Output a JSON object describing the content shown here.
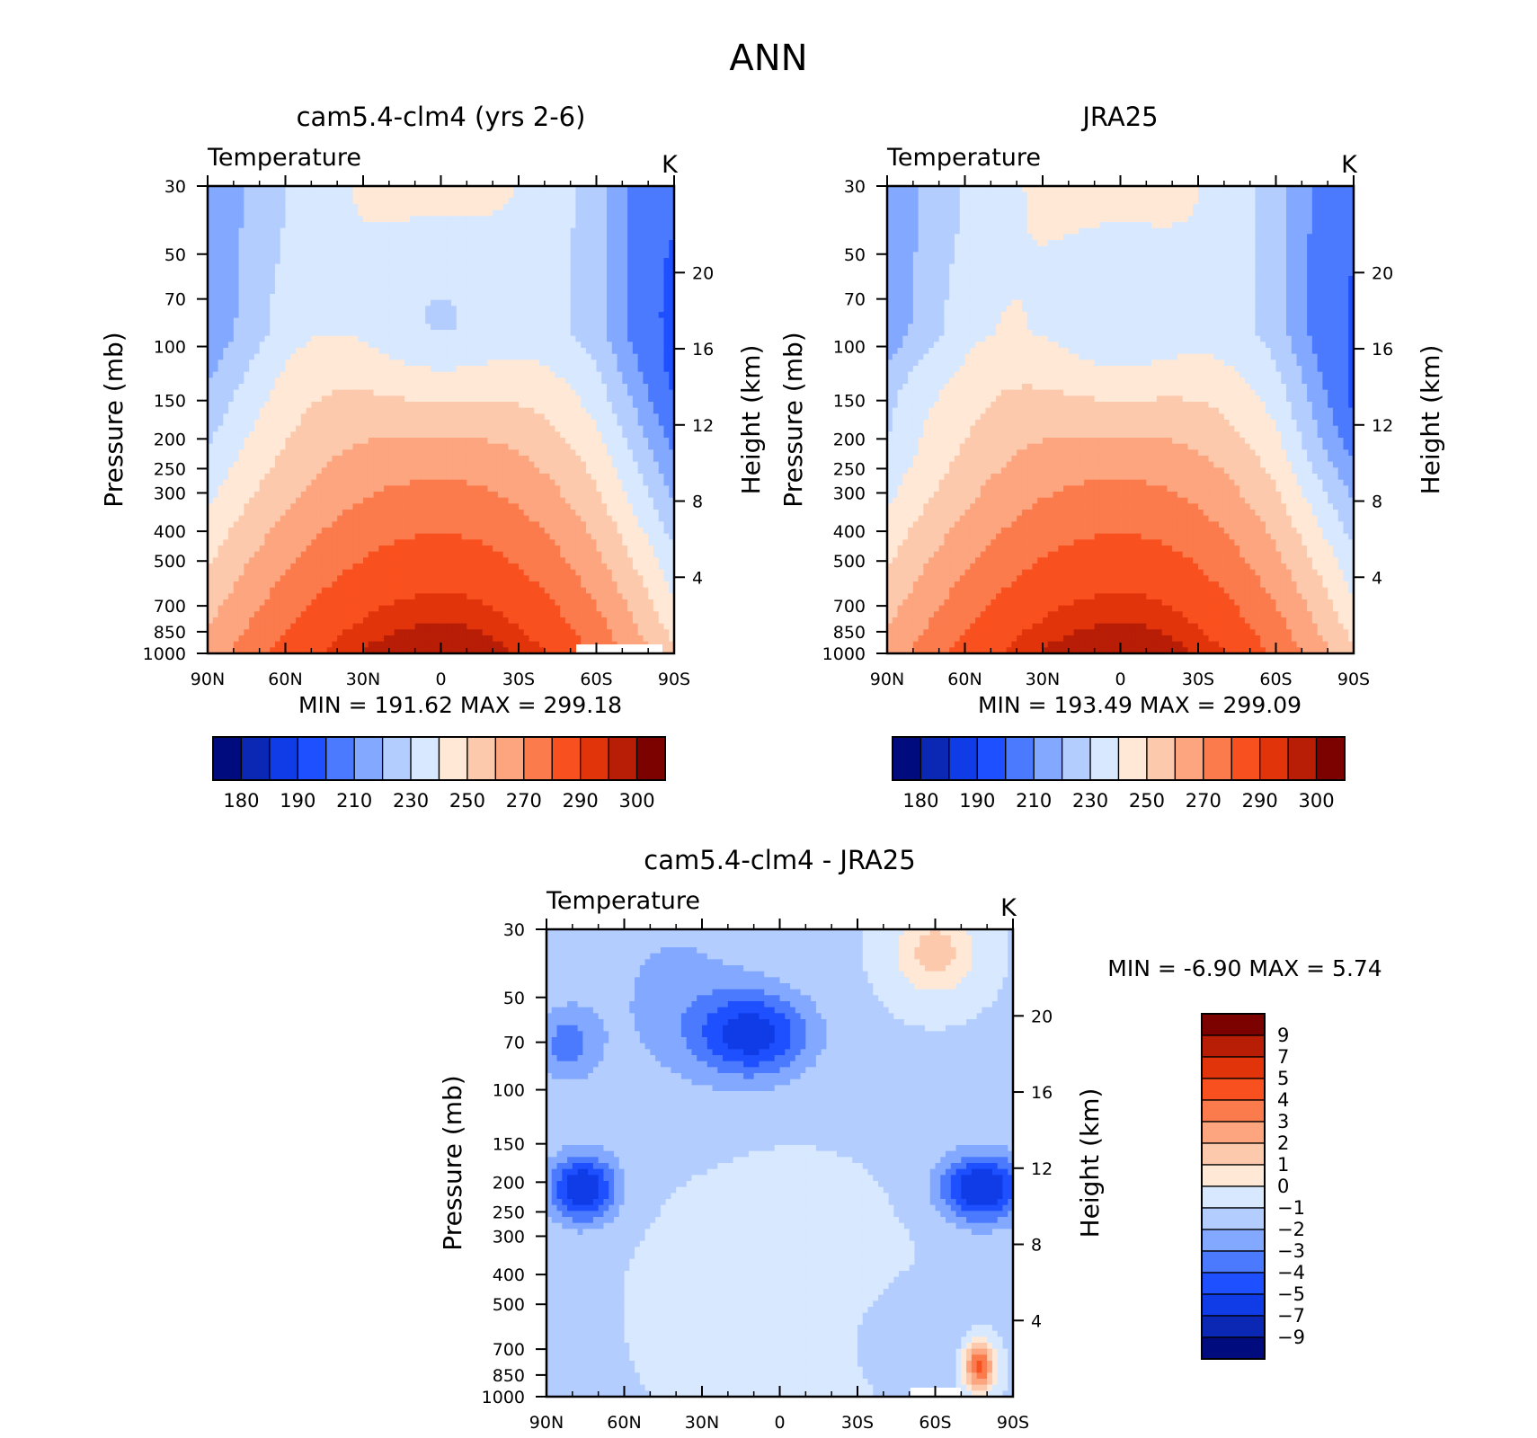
{
  "page_title": "ANN",
  "panels": [
    {
      "title": "cam5.4-clm4 (yrs 2-6)",
      "left_string": "Temperature",
      "right_string": "K",
      "min_max": "MIN =  191.62   MAX =  299.18"
    },
    {
      "title": "JRA25",
      "left_string": "Temperature",
      "right_string": "K",
      "min_max": "MIN =  193.49   MAX =  299.09"
    },
    {
      "title": "cam5.4-clm4 - JRA25",
      "left_string": "Temperature",
      "right_string": "K",
      "min_max": "MIN =   -6.90   MAX =    5.74"
    }
  ],
  "chart_data": [
    {
      "type": "heatmap",
      "title": "cam5.4-clm4 (yrs 2-6)",
      "xlabel": "",
      "ylabel": "Pressure (mb)",
      "ylabel_right": "Height (km)",
      "x_ticks": [
        "90N",
        "60N",
        "30N",
        "0",
        "30S",
        "60S",
        "90S"
      ],
      "y_ticks": [
        30,
        50,
        70,
        100,
        150,
        200,
        250,
        300,
        400,
        500,
        700,
        850,
        1000
      ],
      "y_right_ticks": [
        20,
        16,
        12,
        8,
        4
      ],
      "y_scale": "log",
      "ylim": [
        1000,
        30
      ],
      "contour_levels": [
        180,
        185,
        190,
        200,
        210,
        220,
        230,
        240,
        250,
        260,
        270,
        280,
        290,
        295,
        300
      ],
      "colorbar_labels": [
        "180",
        "190",
        "210",
        "230",
        "250",
        "270",
        "290",
        "300"
      ],
      "min": 191.62,
      "max": 299.18
    },
    {
      "type": "heatmap",
      "title": "JRA25",
      "xlabel": "",
      "ylabel": "Pressure (mb)",
      "ylabel_right": "Height (km)",
      "x_ticks": [
        "90N",
        "60N",
        "30N",
        "0",
        "30S",
        "60S",
        "90S"
      ],
      "y_ticks": [
        30,
        50,
        70,
        100,
        150,
        200,
        250,
        300,
        400,
        500,
        700,
        850,
        1000
      ],
      "y_right_ticks": [
        20,
        16,
        12,
        8,
        4
      ],
      "y_scale": "log",
      "ylim": [
        1000,
        30
      ],
      "contour_levels": [
        180,
        185,
        190,
        200,
        210,
        220,
        230,
        240,
        250,
        260,
        270,
        280,
        290,
        295,
        300
      ],
      "colorbar_labels": [
        "180",
        "190",
        "210",
        "230",
        "250",
        "270",
        "290",
        "300"
      ],
      "min": 193.49,
      "max": 299.09
    },
    {
      "type": "heatmap",
      "title": "cam5.4-clm4 - JRA25",
      "xlabel": "",
      "ylabel": "Pressure (mb)",
      "ylabel_right": "Height (km)",
      "x_ticks": [
        "90N",
        "60N",
        "30N",
        "0",
        "30S",
        "60S",
        "90S"
      ],
      "y_ticks": [
        30,
        50,
        70,
        100,
        150,
        200,
        250,
        300,
        400,
        500,
        700,
        850,
        1000
      ],
      "y_right_ticks": [
        20,
        16,
        12,
        8,
        4
      ],
      "y_scale": "log",
      "ylim": [
        1000,
        30
      ],
      "contour_levels": [
        -9,
        -7,
        -5,
        -4,
        -3,
        -2,
        -1,
        0,
        1,
        2,
        3,
        4,
        5,
        7,
        9
      ],
      "colorbar_labels": [
        "9",
        "7",
        "5",
        "4",
        "3",
        "2",
        "1",
        "0",
        "-1",
        "-2",
        "-3",
        "-4",
        "-5",
        "-7",
        "-9"
      ],
      "min": -6.9,
      "max": 5.74
    }
  ],
  "colors": {
    "temperature_scale": [
      "#000c7d",
      "#0a28b4",
      "#0f3ce6",
      "#1e50ff",
      "#4b7aff",
      "#82a8ff",
      "#b4cdff",
      "#d7e8ff",
      "#ffe8d6",
      "#fdc9ac",
      "#fca57f",
      "#fb7b4d",
      "#f9501f",
      "#e2340b",
      "#b81d06",
      "#7c0200"
    ],
    "difference_scale_top_to_bottom": [
      "#7c0200",
      "#b81d06",
      "#e2340b",
      "#f9501f",
      "#fb7b4d",
      "#fca57f",
      "#fdc9ac",
      "#ffe8d6",
      "#d7e8ff",
      "#b4cdff",
      "#82a8ff",
      "#4b7aff",
      "#1e50ff",
      "#0f3ce6",
      "#0a28b4",
      "#000c7d"
    ]
  }
}
